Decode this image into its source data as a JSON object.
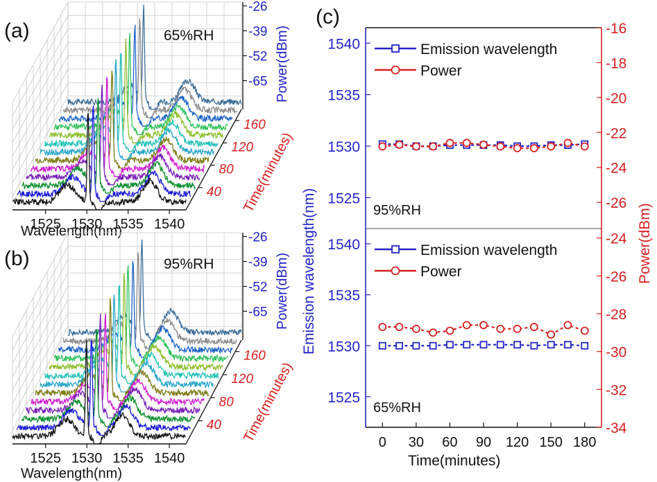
{
  "panel_labels": {
    "a": "(a)",
    "b": "(b)",
    "c": "(c)"
  },
  "colors": {
    "blue": "#2323c8",
    "red": "#d81f1f",
    "axis_black": "#111111",
    "grid": "#c8c8c8",
    "spectrum_traces": [
      "#111111",
      "#1b1bd9",
      "#0d8f2e",
      "#7a1fb8",
      "#d11ad1",
      "#7d7d18",
      "#2aa7c9",
      "#21c2b5",
      "#8fbf2f",
      "#31c25c",
      "#1e64c8",
      "#8a8a8a",
      "#3d6f99"
    ]
  },
  "chart_data": [
    {
      "type": "line",
      "subtype": "waterfall-3d",
      "annotation": "65%RH",
      "xlabel": "Wavelength(nm)",
      "x_ticks": [
        "1525",
        "1530",
        "1535",
        "1540"
      ],
      "xlim": [
        1521,
        1542
      ],
      "ylabel": "Time(minutes)",
      "y_ticks": [
        "40",
        "80",
        "120",
        "160"
      ],
      "ylim": [
        0,
        180
      ],
      "zlabel": "Power(dBm)",
      "z_ticks": [
        "-26",
        "-39",
        "-52",
        "-65"
      ],
      "zlim": [
        -80,
        -24
      ],
      "series_times": [
        0,
        15,
        30,
        45,
        60,
        75,
        90,
        105,
        120,
        135,
        150,
        165,
        180
      ],
      "spectrum_model": {
        "noise_floor_dbm": -76,
        "peak_wavelength_nm": 1530.2,
        "peak_power_dbm": -26,
        "dip_wavelength_nm": 1531.4,
        "side_band_wavelength_nm": [
          1528.5,
          1535.5
        ]
      }
    },
    {
      "type": "line",
      "subtype": "waterfall-3d",
      "annotation": "95%RH",
      "xlabel": "Wavelength(nm)",
      "x_ticks": [
        "1525",
        "1530",
        "1535",
        "1540"
      ],
      "xlim": [
        1521,
        1542
      ],
      "ylabel": "Time(minutes)",
      "y_ticks": [
        "40",
        "80",
        "120",
        "160"
      ],
      "ylim": [
        0,
        180
      ],
      "zlabel": "Power(dBm)",
      "z_ticks": [
        "-26",
        "-39",
        "-52",
        "-65"
      ],
      "zlim": [
        -80,
        -24
      ],
      "series_times": [
        0,
        15,
        30,
        45,
        60,
        75,
        90,
        105,
        120,
        135,
        150,
        165,
        180
      ],
      "spectrum_model": {
        "noise_floor_dbm": -76,
        "peak_wavelength_nm": 1530.0,
        "peak_power_dbm": -26,
        "dip_wavelength_nm": 1531.3,
        "side_band_wavelength_nm": [
          1527.8,
          1533.5
        ]
      }
    },
    {
      "type": "scatter",
      "annotations": [
        "95%RH",
        "65%RH"
      ],
      "xlabel": "Time(minutes)",
      "x_ticks": [
        0,
        30,
        60,
        90,
        120,
        150,
        180
      ],
      "xlim": [
        -15,
        195
      ],
      "ylabel": "Emission wavelength(nm)",
      "y2label": "Power(dBm)",
      "top": {
        "annotation": "95%RH",
        "ylim": [
          1522,
          1541.5
        ],
        "y_ticks": [
          1525,
          1530,
          1535,
          1540
        ],
        "y2lim": [
          -27.5,
          -16
        ],
        "y2_ticks": [
          -16,
          -18,
          -20,
          -22,
          -24,
          -26
        ],
        "legend": [
          "Emission wavelength",
          "Power"
        ],
        "series": [
          {
            "name": "Emission wavelength",
            "axis": "left",
            "marker": "square",
            "x": [
              0,
              15,
              30,
              45,
              60,
              75,
              90,
              105,
              120,
              135,
              150,
              165,
              180
            ],
            "y": [
              1530.2,
              1530.2,
              1530.0,
              1530.0,
              1530.1,
              1530.1,
              1530.1,
              1530.1,
              1530.0,
              1530.0,
              1530.1,
              1530.1,
              1530.2
            ]
          },
          {
            "name": "Power",
            "axis": "right",
            "marker": "circle",
            "x": [
              0,
              15,
              30,
              45,
              60,
              75,
              90,
              105,
              120,
              135,
              150,
              165,
              180
            ],
            "y": [
              -22.8,
              -22.7,
              -22.8,
              -22.8,
              -22.6,
              -22.6,
              -22.7,
              -22.8,
              -22.9,
              -22.9,
              -22.8,
              -22.6,
              -22.8
            ]
          }
        ]
      },
      "bottom": {
        "annotation": "65%RH",
        "ylim": [
          1522,
          1541.5
        ],
        "y_ticks": [
          1525,
          1530,
          1535,
          1540
        ],
        "y2lim": [
          -34,
          -23.5
        ],
        "y2_ticks": [
          -24,
          -26,
          -28,
          -30,
          -32,
          -34
        ],
        "legend": [
          "Emission wavelength",
          "Power"
        ],
        "series": [
          {
            "name": "Emission wavelength",
            "axis": "left",
            "marker": "square",
            "x": [
              0,
              15,
              30,
              45,
              60,
              75,
              90,
              105,
              120,
              135,
              150,
              165,
              180
            ],
            "y": [
              1530.0,
              1530.0,
              1530.0,
              1530.0,
              1530.1,
              1530.1,
              1530.1,
              1530.1,
              1530.1,
              1530.0,
              1530.1,
              1530.1,
              1530.0
            ]
          },
          {
            "name": "Power",
            "axis": "right",
            "marker": "circle",
            "x": [
              0,
              15,
              30,
              45,
              60,
              75,
              90,
              105,
              120,
              135,
              150,
              165,
              180
            ],
            "y": [
              -28.7,
              -28.7,
              -28.8,
              -29.0,
              -28.9,
              -28.6,
              -28.6,
              -28.8,
              -28.8,
              -28.7,
              -29.1,
              -28.6,
              -28.9
            ]
          }
        ]
      }
    }
  ]
}
